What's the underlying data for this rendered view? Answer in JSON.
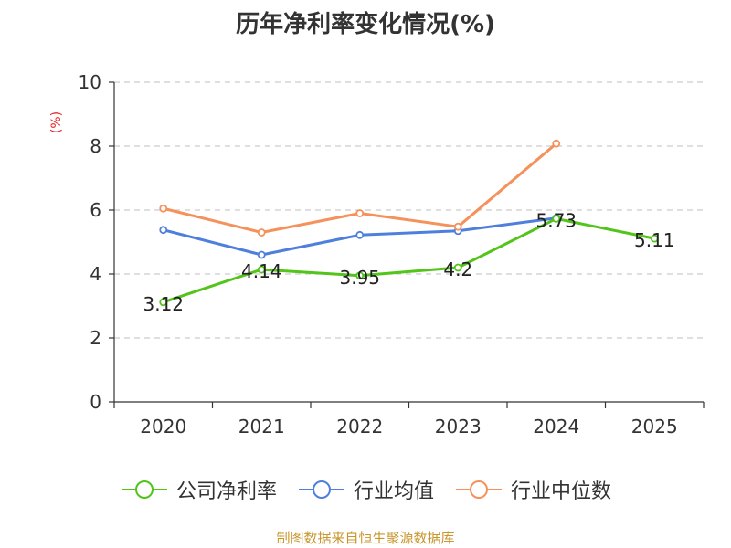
{
  "chart_data": {
    "type": "line",
    "title": "历年净利率变化情况(%)",
    "ylabel": "(%)",
    "ylim": [
      0,
      10
    ],
    "yticks": [
      0,
      2,
      4,
      6,
      8,
      10
    ],
    "grid": true,
    "legend_position": "bottom",
    "categories": [
      "2020",
      "2021",
      "2022",
      "2023",
      "2024",
      "2025"
    ],
    "series": [
      {
        "name": "公司净利率",
        "color": "#52c41a",
        "values": [
          3.12,
          4.14,
          3.95,
          4.2,
          5.73,
          5.11
        ],
        "labels": [
          "3.12",
          "4.14",
          "3.95",
          "4.2",
          "5.73",
          "5.11"
        ]
      },
      {
        "name": "行业均值",
        "color": "#4f7fdc",
        "values": [
          5.38,
          4.6,
          5.22,
          5.35,
          5.75,
          null
        ]
      },
      {
        "name": "行业中位数",
        "color": "#f5915a",
        "values": [
          6.05,
          5.3,
          5.9,
          5.48,
          8.08,
          null
        ]
      }
    ]
  },
  "footer": {
    "source": "制图数据来自恒生聚源数据库"
  }
}
